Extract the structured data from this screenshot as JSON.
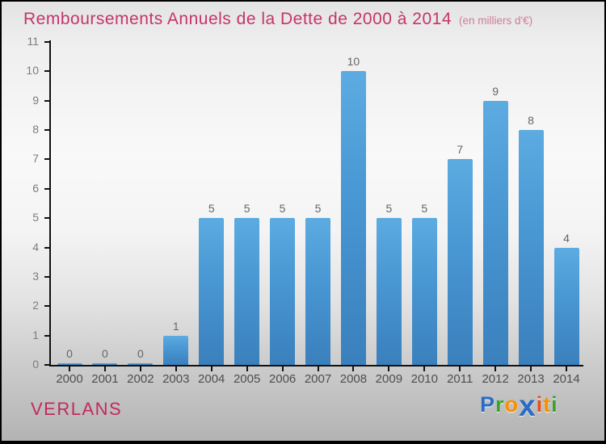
{
  "header": {
    "title": "Remboursements Annuels de la Dette de 2000 à 2014",
    "subtitle": "(en milliers d'€)"
  },
  "chart_data": {
    "type": "bar",
    "title": "Remboursements Annuels de la Dette de 2000 à 2014",
    "unit_note": "en milliers d'€",
    "categories": [
      "2000",
      "2001",
      "2002",
      "2003",
      "2004",
      "2005",
      "2006",
      "2007",
      "2008",
      "2009",
      "2010",
      "2011",
      "2012",
      "2013",
      "2014"
    ],
    "values": [
      0,
      0,
      0,
      1,
      5,
      5,
      5,
      5,
      10,
      5,
      5,
      7,
      9,
      8,
      4
    ],
    "xlabel": "",
    "ylabel": "",
    "ylim": [
      0,
      11
    ],
    "yticks": [
      0,
      1,
      2,
      3,
      4,
      5,
      6,
      7,
      8,
      9,
      10,
      11
    ],
    "grid": false,
    "legend": null,
    "bar_color_top": "#5cabe1",
    "bar_color_bottom": "#3a80bd",
    "axis_color": "#111111",
    "value_label_color": "#666666"
  },
  "footer": {
    "commune": "VERLANS",
    "logo": {
      "name": "Proxiti",
      "letters": [
        {
          "ch": "P",
          "color": "#2a6cc5",
          "big": false
        },
        {
          "ch": "r",
          "color": "#3aa22f",
          "big": false
        },
        {
          "ch": "o",
          "color": "#f69000",
          "big": false
        },
        {
          "ch": "x",
          "color": "#2a6cc5",
          "big": true
        },
        {
          "ch": "i",
          "color": "#e84e1b",
          "big": false
        },
        {
          "ch": "t",
          "color": "#f69000",
          "big": false
        },
        {
          "ch": "i",
          "color": "#3aa22f",
          "big": false
        }
      ]
    }
  },
  "colors": {
    "title": "#c5346a",
    "subtitle": "#cf7b9b",
    "commune": "#c22a5c"
  }
}
